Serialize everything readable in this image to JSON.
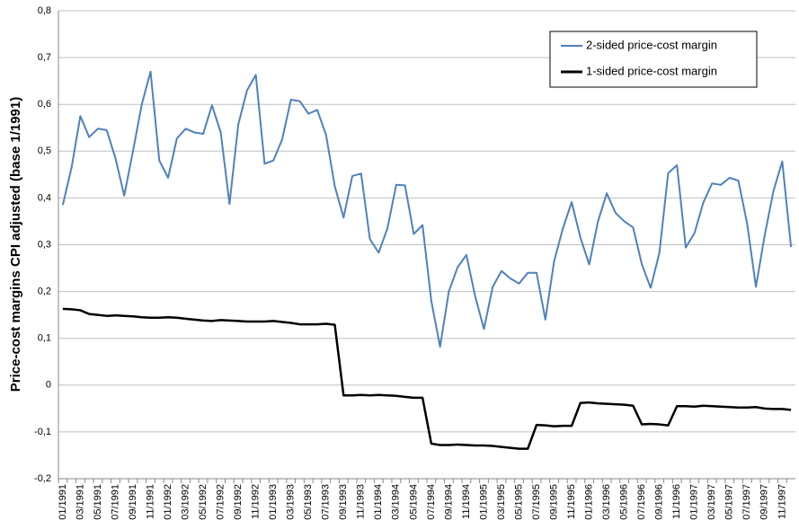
{
  "chart_data": {
    "type": "line",
    "y_label": "Price-cost margins CPI adjusted (base 1/1991)",
    "categories": [
      "01/1991",
      null,
      "03/1991",
      null,
      "05/1991",
      null,
      "07/1991",
      null,
      "09/1991",
      null,
      "11/1991",
      null,
      "01/1992",
      null,
      "03/1992",
      null,
      "05/1992",
      null,
      "07/1992",
      null,
      "09/1992",
      null,
      "11/1992",
      null,
      "01/1993",
      null,
      "03/1993",
      null,
      "05/1993",
      null,
      "07/1993",
      null,
      "09/1993",
      null,
      "11/1993",
      null,
      "01/1994",
      null,
      "03/1994",
      null,
      "05/1994",
      null,
      "07/1994",
      null,
      "09/1994",
      null,
      "11/1994",
      null,
      "01/1995",
      null,
      "03/1995",
      null,
      "05/1995",
      null,
      "07/1995",
      null,
      "09/1995",
      null,
      "11/1995",
      null,
      "01/1996",
      null,
      "03/1996",
      null,
      "05/1996",
      null,
      "07/1996",
      null,
      "09/1996",
      null,
      "11/1996",
      null,
      "01/1997",
      null,
      "03/1997",
      null,
      "05/1997",
      null,
      "07/1997",
      null,
      "09/1997",
      null,
      "11/1997",
      null
    ],
    "series": [
      {
        "name": "2-sided price-cost margin",
        "color": "#4f81bd",
        "values": [
          0.385,
          0.465,
          0.575,
          0.53,
          0.548,
          0.545,
          0.485,
          0.405,
          0.5,
          0.6,
          0.67,
          0.48,
          0.443,
          0.527,
          0.548,
          0.54,
          0.537,
          0.598,
          0.54,
          0.387,
          0.557,
          0.63,
          0.663,
          0.473,
          0.48,
          0.525,
          0.61,
          0.607,
          0.58,
          0.588,
          0.535,
          0.425,
          0.358,
          0.447,
          0.452,
          0.312,
          0.283,
          0.335,
          0.428,
          0.427,
          0.323,
          0.342,
          0.18,
          0.082,
          0.2,
          0.252,
          0.278,
          0.19,
          0.12,
          0.21,
          0.244,
          0.228,
          0.217,
          0.24,
          0.24,
          0.14,
          0.265,
          0.335,
          0.391,
          0.315,
          0.258,
          0.35,
          0.41,
          0.368,
          0.35,
          0.337,
          0.258,
          0.208,
          0.283,
          0.453,
          0.47,
          0.294,
          0.325,
          0.39,
          0.431,
          0.428,
          0.443,
          0.437,
          0.345,
          0.21,
          0.32,
          0.415,
          0.478,
          0.295
        ]
      },
      {
        "name": "1-sided price-cost margin",
        "color": "#000000",
        "values": [
          0.163,
          0.162,
          0.16,
          0.152,
          0.15,
          0.148,
          0.149,
          0.148,
          0.147,
          0.145,
          0.144,
          0.144,
          0.145,
          0.144,
          0.142,
          0.14,
          0.138,
          0.137,
          0.139,
          0.138,
          0.137,
          0.136,
          0.136,
          0.136,
          0.137,
          0.135,
          0.133,
          0.13,
          0.13,
          0.13,
          0.131,
          0.129,
          -0.022,
          -0.022,
          -0.021,
          -0.022,
          -0.021,
          -0.022,
          -0.023,
          -0.025,
          -0.027,
          -0.027,
          -0.125,
          -0.128,
          -0.128,
          -0.127,
          -0.128,
          -0.129,
          -0.129,
          -0.13,
          -0.132,
          -0.134,
          -0.136,
          -0.136,
          -0.085,
          -0.086,
          -0.088,
          -0.087,
          -0.087,
          -0.038,
          -0.037,
          -0.039,
          -0.04,
          -0.041,
          -0.042,
          -0.044,
          -0.084,
          -0.083,
          -0.084,
          -0.086,
          -0.045,
          -0.045,
          -0.046,
          -0.044,
          -0.045,
          -0.046,
          -0.047,
          -0.048,
          -0.048,
          -0.047,
          -0.05,
          -0.051,
          -0.051,
          -0.053
        ]
      }
    ],
    "ylim": [
      -0.2,
      0.8
    ],
    "yticks": [
      {
        "value": -0.2,
        "label": "-0,2"
      },
      {
        "value": -0.1,
        "label": "-0,1"
      },
      0,
      {
        "value": 0.1,
        "label": "0,1"
      },
      {
        "value": 0.2,
        "label": "0,2"
      },
      {
        "value": 0.3,
        "label": "0,3"
      },
      {
        "value": 0.4,
        "label": "0,4"
      },
      {
        "value": 0.5,
        "label": "0,5"
      },
      {
        "value": 0.6,
        "label": "0,6"
      },
      {
        "value": 0.7,
        "label": "0,7"
      },
      {
        "value": 0.8,
        "label": "0,8"
      }
    ],
    "grid": true,
    "legend": "upper right"
  }
}
